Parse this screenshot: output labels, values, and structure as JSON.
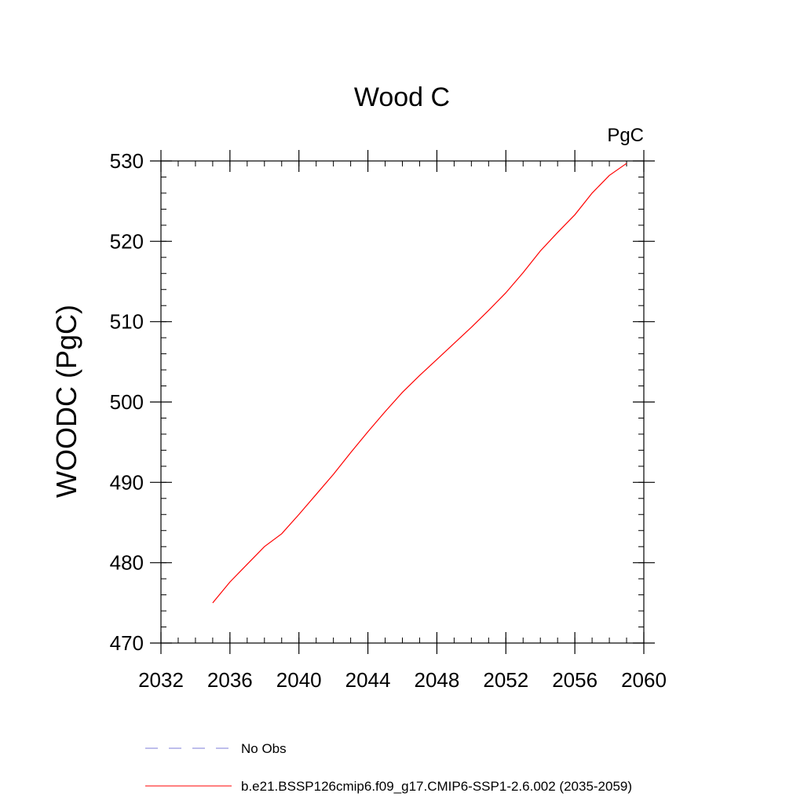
{
  "chart_data": {
    "type": "line",
    "title": "Wood C",
    "units_label": "PgC",
    "ylabel": "WOODC  (PgC)",
    "xlabel": "",
    "xlim": [
      2032,
      2060
    ],
    "ylim": [
      470,
      530
    ],
    "x_ticks": [
      2032,
      2036,
      2040,
      2044,
      2048,
      2052,
      2056,
      2060
    ],
    "y_ticks": [
      470,
      480,
      490,
      500,
      510,
      520,
      530
    ],
    "x_minor_step": 1,
    "y_minor_step": 2,
    "grid": false,
    "legend_placement": "bottom",
    "series": [
      {
        "name": "b.e21.BSSP126cmip6.f09_g17.CMIP6-SSP1-2.6.002 (2035-2059)",
        "color": "#ff0000",
        "style": "solid",
        "x": [
          2035,
          2036,
          2037,
          2038,
          2039,
          2040,
          2041,
          2042,
          2043,
          2044,
          2045,
          2046,
          2047,
          2048,
          2049,
          2050,
          2051,
          2052,
          2053,
          2054,
          2055,
          2056,
          2057,
          2058,
          2059
        ],
        "values": [
          475.0,
          477.6,
          479.8,
          482.0,
          483.6,
          486.0,
          488.5,
          491.0,
          493.7,
          496.3,
          498.8,
          501.2,
          503.3,
          505.3,
          507.3,
          509.3,
          511.4,
          513.6,
          516.1,
          518.8,
          521.1,
          523.3,
          526.0,
          528.2,
          529.7
        ]
      }
    ],
    "legend": [
      {
        "label": "No Obs",
        "color": "#7c7cd8",
        "style": "dashed"
      },
      {
        "label": "b.e21.BSSP126cmip6.f09_g17.CMIP6-SSP1-2.6.002 (2035-2059)",
        "color": "#ff0000",
        "style": "solid"
      }
    ]
  }
}
